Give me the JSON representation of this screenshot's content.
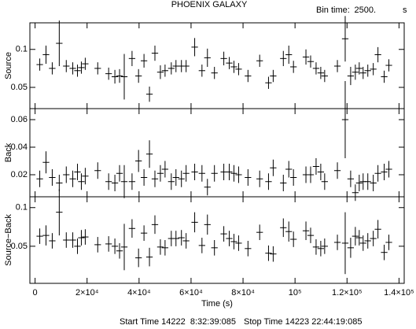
{
  "chart_data": {
    "type": "errorbar",
    "title": "PHOENIX GALAXY",
    "bin_time_label": "Bin time:",
    "bin_time": {
      "value": 2500,
      "label": "2500."
    },
    "bin_time_unit": "s",
    "xlabel": "Time (s)",
    "start_time": "Start Time 14222  8:32:39:085",
    "stop_time": "Stop Time 14223 22:44:19:085",
    "xlim": [
      -2000,
      142000
    ],
    "xticks": [
      0,
      {
        "value": 20000,
        "label": "2×10⁴"
      },
      {
        "value": 40000,
        "label": "4×10⁴"
      },
      {
        "value": 60000,
        "label": "6×10⁴"
      },
      {
        "value": 80000,
        "label": "8×10⁴"
      },
      {
        "value": 100000,
        "label": "10⁵"
      },
      {
        "value": 120000,
        "label": "1.2×10⁵"
      },
      {
        "value": 140000,
        "label": "1.4×10⁵"
      }
    ],
    "x": [
      1800,
      4200,
      6600,
      9300,
      12000,
      14500,
      16300,
      17800,
      19300,
      24100,
      28300,
      30700,
      32500,
      34300,
      37300,
      39800,
      41900,
      44000,
      46100,
      48200,
      50000,
      52400,
      54200,
      56300,
      58100,
      61400,
      64200,
      66300,
      69000,
      72600,
      74700,
      76500,
      78300,
      81900,
      86400,
      89800,
      91600,
      95500,
      97600,
      99400,
      104200,
      106000,
      108100,
      109900,
      111400,
      116300,
      119300,
      121400,
      123200,
      124700,
      126200,
      128000,
      130100,
      131900,
      134300,
      136100
    ],
    "color": "#000000",
    "panels": [
      {
        "ylabel": "Source",
        "ylim": [
          0.022,
          0.135
        ],
        "yticks": [
          0.05,
          0.1
        ],
        "values": [
          0.08,
          0.093,
          0.075,
          0.108,
          0.078,
          0.075,
          0.072,
          0.076,
          0.081,
          0.075,
          0.068,
          0.064,
          0.065,
          0.064,
          0.088,
          0.065,
          0.085,
          0.041,
          0.095,
          0.07,
          0.072,
          0.075,
          0.078,
          0.078,
          0.078,
          0.103,
          0.072,
          0.089,
          0.069,
          0.088,
          0.082,
          0.077,
          0.074,
          0.065,
          0.085,
          0.056,
          0.065,
          0.088,
          0.093,
          0.077,
          0.09,
          0.084,
          0.075,
          0.069,
          0.065,
          0.078,
          0.114,
          0.065,
          0.07,
          0.075,
          0.069,
          0.072,
          0.074,
          0.093,
          0.064,
          0.079
        ],
        "errors": [
          0.008,
          0.012,
          0.008,
          0.03,
          0.008,
          0.008,
          0.008,
          0.008,
          0.008,
          0.008,
          0.008,
          0.009,
          0.009,
          0.03,
          0.01,
          0.009,
          0.009,
          0.01,
          0.01,
          0.009,
          0.008,
          0.008,
          0.008,
          0.008,
          0.008,
          0.012,
          0.008,
          0.012,
          0.008,
          0.009,
          0.008,
          0.008,
          0.008,
          0.008,
          0.008,
          0.008,
          0.008,
          0.01,
          0.012,
          0.008,
          0.01,
          0.008,
          0.008,
          0.008,
          0.008,
          0.008,
          0.03,
          0.012,
          0.01,
          0.008,
          0.008,
          0.008,
          0.008,
          0.01,
          0.008,
          0.008
        ]
      },
      {
        "ylabel": "Back",
        "ylim": [
          0.004,
          0.068
        ],
        "yticks": [
          0.02,
          0.04,
          0.06
        ],
        "values": [
          0.017,
          0.029,
          0.018,
          0.014,
          0.02,
          0.017,
          0.022,
          0.015,
          0.019,
          0.023,
          0.015,
          0.014,
          0.021,
          0.015,
          0.015,
          0.03,
          0.018,
          0.035,
          0.017,
          0.021,
          0.024,
          0.015,
          0.018,
          0.017,
          0.021,
          0.022,
          0.021,
          0.011,
          0.021,
          0.022,
          0.022,
          0.021,
          0.02,
          0.018,
          0.017,
          0.015,
          0.025,
          0.014,
          0.024,
          0.018,
          0.02,
          0.02,
          0.026,
          0.022,
          0.015,
          0.023,
          0.06,
          0.017,
          0.007,
          0.014,
          0.015,
          0.015,
          0.014,
          0.021,
          0.022,
          0.024
        ],
        "errors": [
          0.006,
          0.008,
          0.006,
          0.006,
          0.006,
          0.006,
          0.006,
          0.006,
          0.006,
          0.006,
          0.006,
          0.006,
          0.006,
          0.012,
          0.006,
          0.008,
          0.006,
          0.01,
          0.006,
          0.006,
          0.006,
          0.006,
          0.006,
          0.006,
          0.006,
          0.006,
          0.006,
          0.006,
          0.006,
          0.006,
          0.006,
          0.006,
          0.006,
          0.006,
          0.006,
          0.006,
          0.006,
          0.006,
          0.006,
          0.006,
          0.006,
          0.006,
          0.006,
          0.006,
          0.006,
          0.006,
          0.028,
          0.006,
          0.006,
          0.006,
          0.006,
          0.006,
          0.006,
          0.006,
          0.006,
          0.006
        ]
      },
      {
        "ylabel": "Source−Back",
        "ylim": [
          0.002,
          0.114
        ],
        "yticks": [
          0.05,
          0.1
        ],
        "values": [
          0.063,
          0.064,
          0.057,
          0.094,
          0.058,
          0.058,
          0.05,
          0.061,
          0.062,
          0.052,
          0.053,
          0.05,
          0.044,
          0.049,
          0.073,
          0.035,
          0.067,
          0.036,
          0.078,
          0.049,
          0.048,
          0.06,
          0.06,
          0.061,
          0.057,
          0.081,
          0.051,
          0.078,
          0.048,
          0.066,
          0.06,
          0.056,
          0.054,
          0.047,
          0.068,
          0.041,
          0.04,
          0.074,
          0.069,
          0.059,
          0.07,
          0.064,
          0.049,
          0.047,
          0.05,
          0.055,
          0.054,
          0.048,
          0.063,
          0.061,
          0.054,
          0.057,
          0.06,
          0.072,
          0.042,
          0.055
        ],
        "errors": [
          0.01,
          0.013,
          0.01,
          0.03,
          0.01,
          0.01,
          0.01,
          0.01,
          0.01,
          0.01,
          0.01,
          0.01,
          0.01,
          0.03,
          0.012,
          0.012,
          0.01,
          0.012,
          0.012,
          0.01,
          0.01,
          0.01,
          0.01,
          0.01,
          0.01,
          0.013,
          0.01,
          0.013,
          0.01,
          0.01,
          0.01,
          0.01,
          0.01,
          0.01,
          0.01,
          0.01,
          0.01,
          0.012,
          0.013,
          0.01,
          0.012,
          0.01,
          0.01,
          0.01,
          0.01,
          0.01,
          0.04,
          0.013,
          0.012,
          0.01,
          0.01,
          0.01,
          0.01,
          0.012,
          0.01,
          0.01
        ]
      }
    ]
  }
}
